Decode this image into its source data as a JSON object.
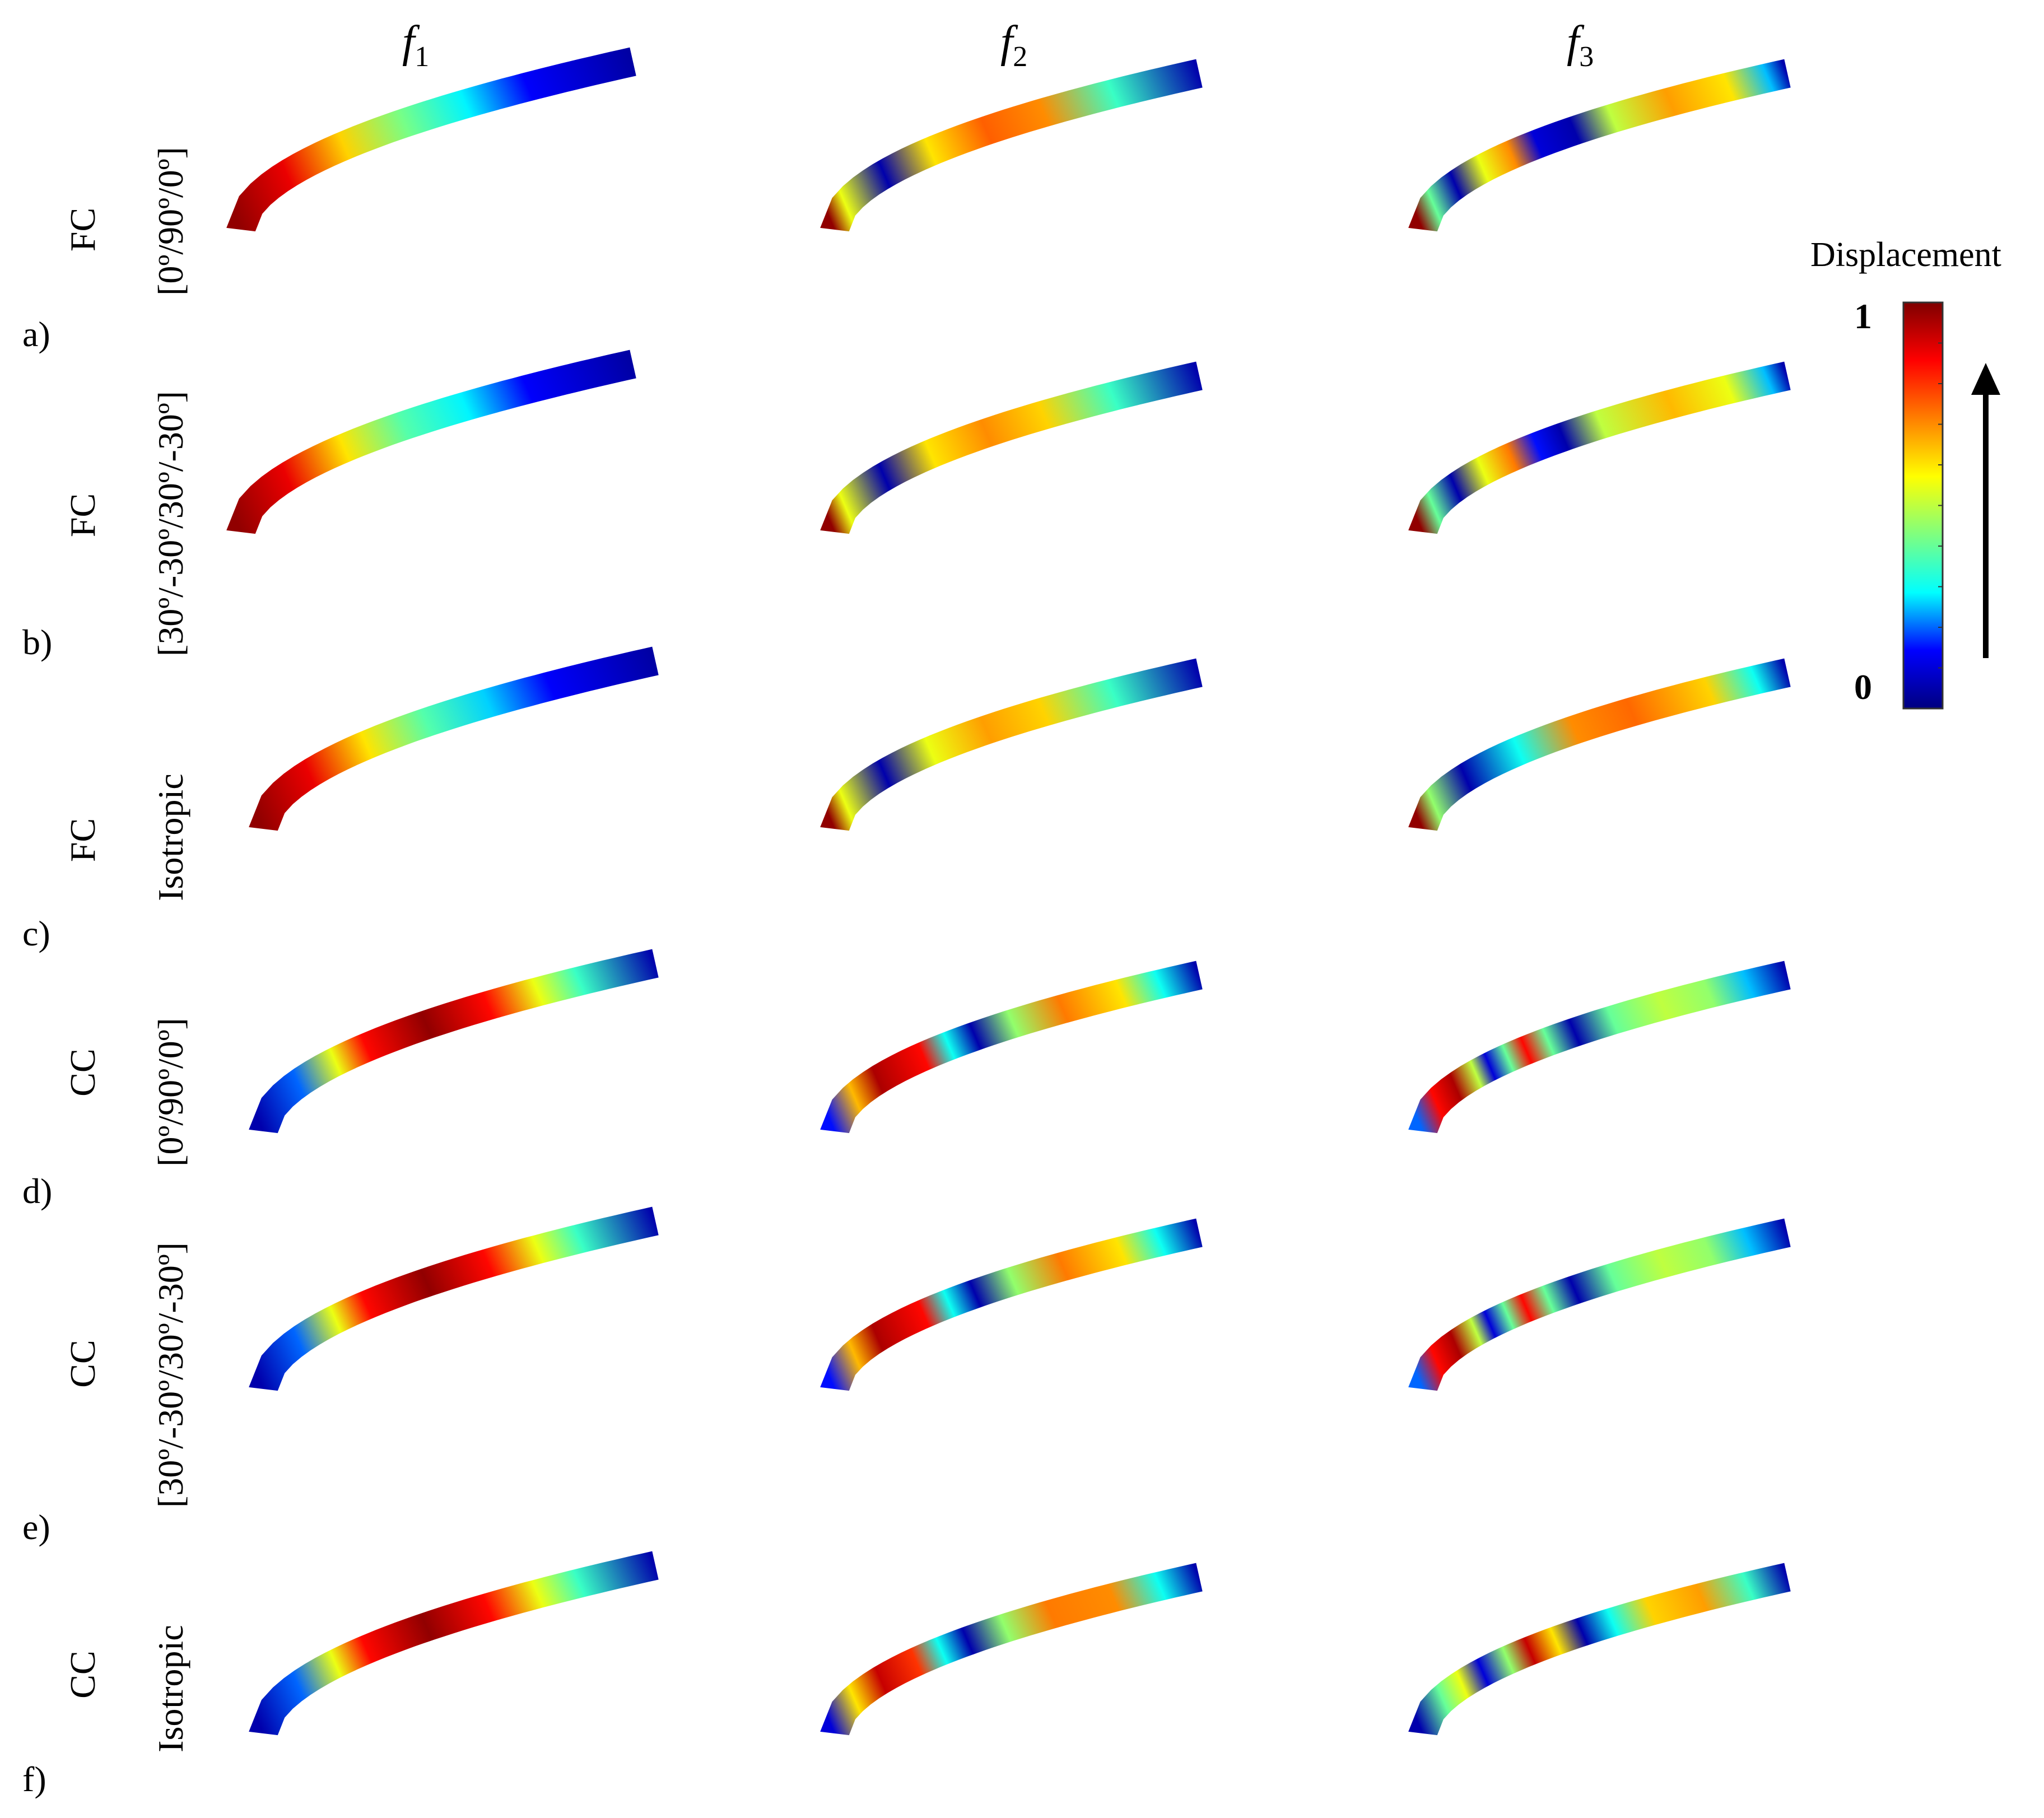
{
  "columns": [
    {
      "symbol": "f",
      "sub": "1"
    },
    {
      "symbol": "f",
      "sub": "2"
    },
    {
      "symbol": "f",
      "sub": "3"
    }
  ],
  "rows": [
    {
      "letter": "a)",
      "support": "FC",
      "layup": "[0º/90º/0º]"
    },
    {
      "letter": "b)",
      "support": "FC",
      "layup": "[30º/-30º/30º/-30º]"
    },
    {
      "letter": "c)",
      "support": "FC",
      "layup": "Isotropic"
    },
    {
      "letter": "d)",
      "support": "CC",
      "layup": "[0º/90º/0º]"
    },
    {
      "letter": "e)",
      "support": "CC",
      "layup": "[30º/-30º/30º/-30º]"
    },
    {
      "letter": "f)",
      "support": "CC",
      "layup": "Isotropic"
    }
  ],
  "colorbar": {
    "title": "Displacement",
    "max_label": "1",
    "min_label": "0",
    "colormap": [
      "#00007f",
      "#0000ff",
      "#00ffff",
      "#7fff7f",
      "#ffff00",
      "#ff7f00",
      "#ff0000",
      "#7f0000"
    ]
  },
  "mode_shapes": [
    [
      {
        "stops": [
          [
            0,
            0.98
          ],
          [
            0.15,
            0.88
          ],
          [
            0.3,
            0.62
          ],
          [
            0.45,
            0.42
          ],
          [
            0.6,
            0.28
          ],
          [
            0.75,
            0.14
          ],
          [
            1,
            0.04
          ]
        ]
      },
      {
        "stops": [
          [
            0,
            0.98
          ],
          [
            0.05,
            0.55
          ],
          [
            0.17,
            0.05
          ],
          [
            0.3,
            0.6
          ],
          [
            0.45,
            0.75
          ],
          [
            0.6,
            0.7
          ],
          [
            0.78,
            0.35
          ],
          [
            1,
            0.05
          ]
        ]
      },
      {
        "stops": [
          [
            0,
            0.98
          ],
          [
            0.05,
            0.4
          ],
          [
            0.12,
            0.05
          ],
          [
            0.2,
            0.55
          ],
          [
            0.28,
            0.7
          ],
          [
            0.35,
            0.1
          ],
          [
            0.45,
            0.05
          ],
          [
            0.55,
            0.5
          ],
          [
            0.7,
            0.68
          ],
          [
            0.85,
            0.6
          ],
          [
            0.95,
            0.25
          ],
          [
            1,
            0.05
          ]
        ]
      }
    ],
    [
      {
        "stops": [
          [
            0,
            0.98
          ],
          [
            0.15,
            0.88
          ],
          [
            0.3,
            0.6
          ],
          [
            0.45,
            0.38
          ],
          [
            0.6,
            0.28
          ],
          [
            0.75,
            0.14
          ],
          [
            1,
            0.04
          ]
        ]
      },
      {
        "stops": [
          [
            0,
            0.98
          ],
          [
            0.05,
            0.55
          ],
          [
            0.17,
            0.05
          ],
          [
            0.3,
            0.6
          ],
          [
            0.45,
            0.7
          ],
          [
            0.6,
            0.62
          ],
          [
            0.78,
            0.35
          ],
          [
            1,
            0.05
          ]
        ]
      },
      {
        "stops": [
          [
            0,
            0.98
          ],
          [
            0.05,
            0.4
          ],
          [
            0.12,
            0.05
          ],
          [
            0.2,
            0.55
          ],
          [
            0.28,
            0.72
          ],
          [
            0.35,
            0.15
          ],
          [
            0.42,
            0.05
          ],
          [
            0.52,
            0.5
          ],
          [
            0.7,
            0.65
          ],
          [
            0.85,
            0.55
          ],
          [
            0.95,
            0.25
          ],
          [
            1,
            0.05
          ]
        ]
      }
    ],
    [
      {
        "stops": [
          [
            0,
            0.98
          ],
          [
            0.15,
            0.88
          ],
          [
            0.3,
            0.6
          ],
          [
            0.45,
            0.38
          ],
          [
            0.6,
            0.26
          ],
          [
            0.75,
            0.14
          ],
          [
            1,
            0.04
          ]
        ]
      },
      {
        "stops": [
          [
            0,
            0.98
          ],
          [
            0.05,
            0.55
          ],
          [
            0.17,
            0.05
          ],
          [
            0.3,
            0.55
          ],
          [
            0.45,
            0.68
          ],
          [
            0.6,
            0.62
          ],
          [
            0.78,
            0.35
          ],
          [
            1,
            0.05
          ]
        ]
      },
      {
        "stops": [
          [
            0,
            0.98
          ],
          [
            0.05,
            0.45
          ],
          [
            0.15,
            0.05
          ],
          [
            0.3,
            0.3
          ],
          [
            0.45,
            0.7
          ],
          [
            0.6,
            0.74
          ],
          [
            0.8,
            0.62
          ],
          [
            0.92,
            0.3
          ],
          [
            1,
            0.05
          ]
        ]
      }
    ],
    [
      {
        "stops": [
          [
            0,
            0.05
          ],
          [
            0.12,
            0.2
          ],
          [
            0.22,
            0.55
          ],
          [
            0.3,
            0.85
          ],
          [
            0.45,
            0.98
          ],
          [
            0.6,
            0.85
          ],
          [
            0.72,
            0.55
          ],
          [
            0.82,
            0.35
          ],
          [
            1,
            0.05
          ]
        ]
      },
      {
        "stops": [
          [
            0,
            0.15
          ],
          [
            0.08,
            0.65
          ],
          [
            0.15,
            0.95
          ],
          [
            0.28,
            0.85
          ],
          [
            0.35,
            0.3
          ],
          [
            0.42,
            0.05
          ],
          [
            0.52,
            0.45
          ],
          [
            0.65,
            0.72
          ],
          [
            0.8,
            0.6
          ],
          [
            0.9,
            0.3
          ],
          [
            1,
            0.05
          ]
        ]
      },
      {
        "stops": [
          [
            0,
            0.2
          ],
          [
            0.06,
            0.85
          ],
          [
            0.12,
            0.95
          ],
          [
            0.18,
            0.5
          ],
          [
            0.22,
            0.1
          ],
          [
            0.27,
            0.4
          ],
          [
            0.32,
            0.85
          ],
          [
            0.38,
            0.4
          ],
          [
            0.45,
            0.05
          ],
          [
            0.55,
            0.4
          ],
          [
            0.68,
            0.5
          ],
          [
            0.8,
            0.45
          ],
          [
            0.9,
            0.25
          ],
          [
            1,
            0.05
          ]
        ]
      }
    ],
    [
      {
        "stops": [
          [
            0,
            0.05
          ],
          [
            0.12,
            0.2
          ],
          [
            0.22,
            0.55
          ],
          [
            0.3,
            0.85
          ],
          [
            0.45,
            0.98
          ],
          [
            0.6,
            0.85
          ],
          [
            0.72,
            0.55
          ],
          [
            0.82,
            0.35
          ],
          [
            1,
            0.05
          ]
        ]
      },
      {
        "stops": [
          [
            0,
            0.15
          ],
          [
            0.08,
            0.65
          ],
          [
            0.15,
            0.95
          ],
          [
            0.28,
            0.85
          ],
          [
            0.35,
            0.3
          ],
          [
            0.42,
            0.05
          ],
          [
            0.52,
            0.45
          ],
          [
            0.65,
            0.72
          ],
          [
            0.8,
            0.6
          ],
          [
            0.9,
            0.3
          ],
          [
            1,
            0.05
          ]
        ]
      },
      {
        "stops": [
          [
            0,
            0.2
          ],
          [
            0.06,
            0.85
          ],
          [
            0.12,
            0.95
          ],
          [
            0.18,
            0.5
          ],
          [
            0.22,
            0.1
          ],
          [
            0.27,
            0.4
          ],
          [
            0.32,
            0.85
          ],
          [
            0.38,
            0.4
          ],
          [
            0.45,
            0.05
          ],
          [
            0.55,
            0.4
          ],
          [
            0.68,
            0.5
          ],
          [
            0.8,
            0.45
          ],
          [
            0.9,
            0.25
          ],
          [
            1,
            0.05
          ]
        ]
      }
    ],
    [
      {
        "stops": [
          [
            0,
            0.05
          ],
          [
            0.12,
            0.2
          ],
          [
            0.22,
            0.55
          ],
          [
            0.3,
            0.85
          ],
          [
            0.45,
            0.98
          ],
          [
            0.6,
            0.85
          ],
          [
            0.72,
            0.55
          ],
          [
            0.82,
            0.35
          ],
          [
            1,
            0.05
          ]
        ]
      },
      {
        "stops": [
          [
            0,
            0.1
          ],
          [
            0.08,
            0.6
          ],
          [
            0.16,
            0.92
          ],
          [
            0.26,
            0.8
          ],
          [
            0.33,
            0.3
          ],
          [
            0.4,
            0.05
          ],
          [
            0.5,
            0.45
          ],
          [
            0.62,
            0.72
          ],
          [
            0.78,
            0.7
          ],
          [
            0.9,
            0.3
          ],
          [
            1,
            0.05
          ]
        ]
      },
      {
        "stops": [
          [
            0,
            0.05
          ],
          [
            0.08,
            0.4
          ],
          [
            0.14,
            0.55
          ],
          [
            0.2,
            0.1
          ],
          [
            0.27,
            0.45
          ],
          [
            0.33,
            0.92
          ],
          [
            0.4,
            0.6
          ],
          [
            0.47,
            0.05
          ],
          [
            0.55,
            0.3
          ],
          [
            0.65,
            0.62
          ],
          [
            0.78,
            0.68
          ],
          [
            0.9,
            0.35
          ],
          [
            1,
            0.05
          ]
        ]
      }
    ]
  ]
}
